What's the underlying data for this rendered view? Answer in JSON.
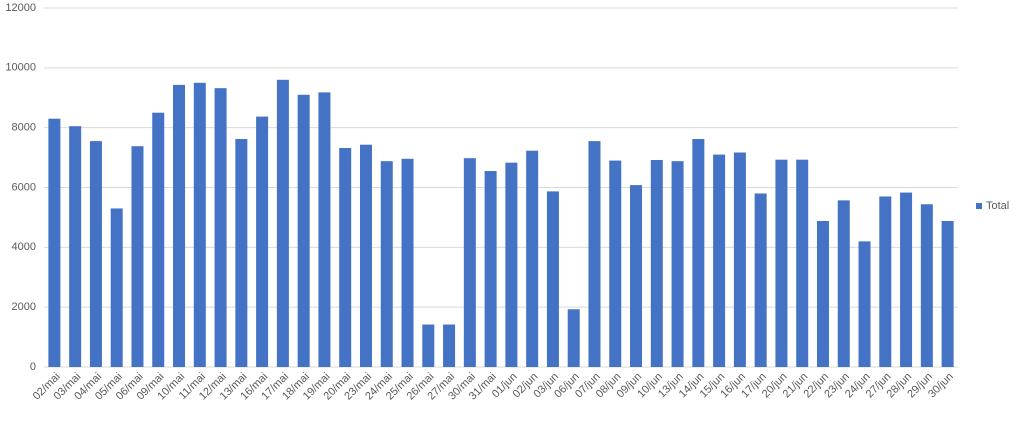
{
  "chart_data": {
    "type": "bar",
    "categories": [
      "02/mai",
      "03/mai",
      "04/mai",
      "05/mai",
      "06/mai",
      "09/mai",
      "10/mai",
      "11/mai",
      "12/mai",
      "13/mai",
      "16/mai",
      "17/mai",
      "18/mai",
      "19/mai",
      "20/mai",
      "23/mai",
      "24/mai",
      "25/mai",
      "26/mai",
      "27/mai",
      "30/mai",
      "31/mai",
      "01/jun",
      "02/jun",
      "03/jun",
      "06/jun",
      "07/jun",
      "08/jun",
      "09/jun",
      "10/jun",
      "13/jun",
      "14/jun",
      "15/jun",
      "16/jun",
      "17/jun",
      "20/jun",
      "21/jun",
      "22/jun",
      "23/jun",
      "24/jun",
      "27/jun",
      "28/jun",
      "29/jun",
      "30/jun"
    ],
    "series": [
      {
        "name": "Total",
        "color": "#4472c4",
        "values": [
          8300,
          8050,
          7550,
          5300,
          7380,
          8500,
          9430,
          9500,
          9320,
          7620,
          8370,
          9600,
          9100,
          9180,
          7320,
          7430,
          6880,
          6960,
          1420,
          1420,
          6980,
          6550,
          6830,
          7230,
          5870,
          1930,
          7550,
          6900,
          6080,
          6920,
          6880,
          7620,
          7100,
          7170,
          5800,
          6930,
          6930,
          4880,
          5570,
          4200,
          5700,
          5830,
          5440,
          4880
        ]
      }
    ],
    "ylim": [
      0,
      12000
    ],
    "yticks": [
      0,
      2000,
      4000,
      6000,
      8000,
      10000,
      12000
    ],
    "grid": true,
    "legend": "right"
  }
}
